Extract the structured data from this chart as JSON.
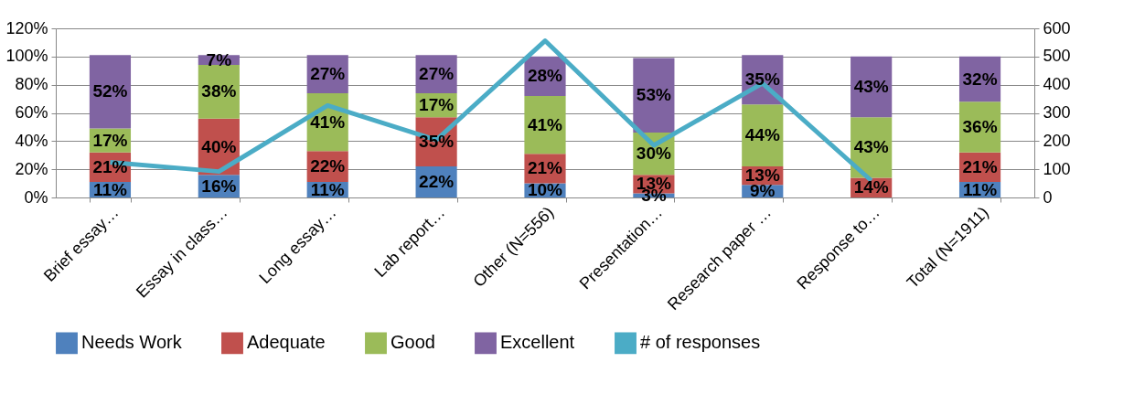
{
  "chart_data": {
    "type": "bar",
    "stacked": true,
    "categories": [
      "Brief essay…",
      "Essay in class…",
      "Long essay…",
      "Lab report…",
      "Other (N=556)",
      "Presentation…",
      "Research paper …",
      "Response to…",
      "Total (N=1911)"
    ],
    "series": [
      {
        "name": "Needs Work",
        "color": "#4f81bd",
        "values": [
          11,
          16,
          11,
          22,
          10,
          3,
          9,
          0,
          11
        ],
        "value_labels": [
          "11%",
          "16%",
          "11%",
          "22%",
          "10%",
          "3%",
          "9%",
          null,
          "11%"
        ]
      },
      {
        "name": "Adequate",
        "color": "#c0504d",
        "values": [
          21,
          40,
          22,
          35,
          21,
          13,
          13,
          14,
          21
        ],
        "value_labels": [
          "21%",
          "40%",
          "22%",
          "35%",
          "21%",
          "13%",
          "13%",
          "14%",
          "21%"
        ]
      },
      {
        "name": "Good",
        "color": "#9bbb59",
        "values": [
          17,
          38,
          41,
          17,
          41,
          30,
          44,
          43,
          36
        ],
        "value_labels": [
          "17%",
          "38%",
          "41%",
          "17%",
          "41%",
          "30%",
          "44%",
          "43%",
          "36%"
        ]
      },
      {
        "name": "Excellent",
        "color": "#8064a2",
        "values": [
          52,
          7,
          27,
          27,
          28,
          53,
          35,
          43,
          32
        ],
        "value_labels": [
          "52%",
          "7%",
          "27%",
          "27%",
          "28%",
          "53%",
          "35%",
          "43%",
          "32%"
        ]
      },
      {
        "name": "# of responses",
        "type": "line",
        "axis": "y2",
        "color": "#4bacc6",
        "values": [
          125,
          92,
          326,
          204,
          556,
          185,
          405,
          60,
          null
        ]
      }
    ],
    "ylim": [
      0,
      120
    ],
    "yticks": [
      {
        "value": 0,
        "label": "0%"
      },
      {
        "value": 20,
        "label": "20%"
      },
      {
        "value": 40,
        "label": "40%"
      },
      {
        "value": 60,
        "label": "60%"
      },
      {
        "value": 80,
        "label": "80%"
      },
      {
        "value": 100,
        "label": "100%"
      },
      {
        "value": 120,
        "label": "120%"
      }
    ],
    "y2lim": [
      0,
      600
    ],
    "y2ticks": [
      0,
      100,
      200,
      300,
      400,
      500,
      600
    ],
    "grid": "y",
    "legend": "bottom",
    "marker": "none"
  }
}
